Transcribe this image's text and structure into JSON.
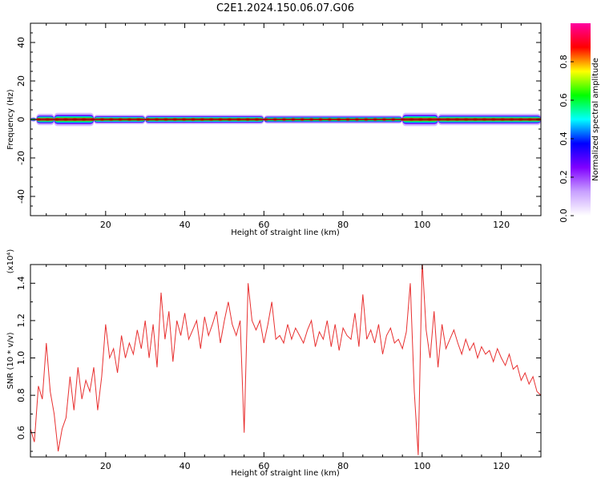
{
  "figure_title": "C2E1.2024.150.06.07.G06",
  "chart_data": [
    {
      "type": "heatmap",
      "xlabel": "Height of straight line (km)",
      "ylabel": "Frequency (Hz)",
      "xlim": [
        1,
        130
      ],
      "ylim": [
        -50,
        50
      ],
      "xticks": [
        20,
        40,
        60,
        80,
        100,
        120
      ],
      "yticks": [
        -40,
        -20,
        0,
        20,
        40
      ],
      "colorbar": {
        "label": "Normalized spectral amplitude",
        "range": [
          0,
          1
        ],
        "ticks": [
          0.0,
          0.2,
          0.4,
          0.6,
          0.8
        ],
        "colors": [
          "#ffffff",
          "#c8a0ff",
          "#8000ff",
          "#0000ff",
          "#00ffff",
          "#00ff00",
          "#ffff00",
          "#ff0000",
          "#ff00a0"
        ]
      },
      "band": {
        "center_hz": 0,
        "segments": [
          {
            "x": [
              1,
              2.5
            ],
            "half_width_hz": 1.2,
            "peak": 0.8
          },
          {
            "x": [
              2.5,
              7
            ],
            "half_width_hz": 3.0,
            "peak": 0.9
          },
          {
            "x": [
              7,
              17
            ],
            "half_width_hz": 3.5,
            "peak": 0.85
          },
          {
            "x": [
              17,
              30
            ],
            "half_width_hz": 2.5,
            "peak": 0.9
          },
          {
            "x": [
              30,
              60
            ],
            "half_width_hz": 2.5,
            "peak": 0.9
          },
          {
            "x": [
              60,
              95
            ],
            "half_width_hz": 2.2,
            "peak": 0.9
          },
          {
            "x": [
              95,
              104
            ],
            "half_width_hz": 3.5,
            "peak": 0.85
          },
          {
            "x": [
              104,
              130
            ],
            "half_width_hz": 3.0,
            "peak": 0.9
          }
        ]
      }
    },
    {
      "type": "line",
      "xlabel": "Height of straight line (km)",
      "ylabel": "SNR (10 * v/v)",
      "yscale_label": "(x10⁴)",
      "xlim": [
        1,
        130
      ],
      "ylim": [
        0.47,
        1.5
      ],
      "xticks": [
        20,
        40,
        60,
        80,
        100,
        120
      ],
      "yticks": [
        0.6,
        0.8,
        1.0,
        1.2,
        1.4
      ],
      "ytick_labels": [
        "0.6",
        "0.8",
        "1.0",
        "1.2",
        "1.4"
      ],
      "color": "#e83030",
      "x": [
        1,
        2,
        3,
        4,
        5,
        6,
        7,
        8,
        9,
        10,
        11,
        12,
        13,
        14,
        15,
        16,
        17,
        18,
        19,
        20,
        21,
        22,
        23,
        24,
        25,
        26,
        27,
        28,
        29,
        30,
        31,
        32,
        33,
        34,
        35,
        36,
        37,
        38,
        39,
        40,
        41,
        42,
        43,
        44,
        45,
        46,
        47,
        48,
        49,
        50,
        51,
        52,
        53,
        54,
        55,
        56,
        57,
        58,
        59,
        60,
        61,
        62,
        63,
        64,
        65,
        66,
        67,
        68,
        69,
        70,
        71,
        72,
        73,
        74,
        75,
        76,
        77,
        78,
        79,
        80,
        81,
        82,
        83,
        84,
        85,
        86,
        87,
        88,
        89,
        90,
        91,
        92,
        93,
        94,
        95,
        96,
        97,
        98,
        99,
        100,
        101,
        102,
        103,
        104,
        105,
        106,
        107,
        108,
        109,
        110,
        111,
        112,
        113,
        114,
        115,
        116,
        117,
        118,
        119,
        120,
        121,
        122,
        123,
        124,
        125,
        126,
        127,
        128,
        129,
        130
      ],
      "values": [
        0.62,
        0.55,
        0.85,
        0.78,
        1.08,
        0.82,
        0.7,
        0.5,
        0.62,
        0.68,
        0.9,
        0.72,
        0.95,
        0.78,
        0.88,
        0.82,
        0.95,
        0.72,
        0.9,
        1.18,
        1.0,
        1.05,
        0.92,
        1.12,
        1.0,
        1.08,
        1.02,
        1.15,
        1.05,
        1.2,
        1.0,
        1.18,
        0.95,
        1.35,
        1.1,
        1.25,
        0.98,
        1.2,
        1.12,
        1.24,
        1.1,
        1.15,
        1.2,
        1.05,
        1.22,
        1.12,
        1.18,
        1.25,
        1.08,
        1.2,
        1.3,
        1.18,
        1.12,
        1.2,
        0.6,
        1.4,
        1.2,
        1.15,
        1.2,
        1.08,
        1.18,
        1.3,
        1.1,
        1.12,
        1.08,
        1.18,
        1.1,
        1.16,
        1.12,
        1.08,
        1.15,
        1.2,
        1.06,
        1.14,
        1.1,
        1.2,
        1.06,
        1.18,
        1.04,
        1.16,
        1.12,
        1.1,
        1.24,
        1.06,
        1.34,
        1.1,
        1.15,
        1.08,
        1.18,
        1.02,
        1.12,
        1.16,
        1.08,
        1.1,
        1.05,
        1.14,
        1.4,
        0.82,
        0.48,
        1.52,
        1.15,
        1.0,
        1.25,
        0.95,
        1.18,
        1.05,
        1.1,
        1.15,
        1.08,
        1.02,
        1.1,
        1.04,
        1.08,
        1.0,
        1.06,
        1.02,
        1.04,
        0.98,
        1.05,
        1.0,
        0.96,
        1.02,
        0.94,
        0.96,
        0.88,
        0.92,
        0.86,
        0.9,
        0.82,
        0.8
      ]
    }
  ]
}
